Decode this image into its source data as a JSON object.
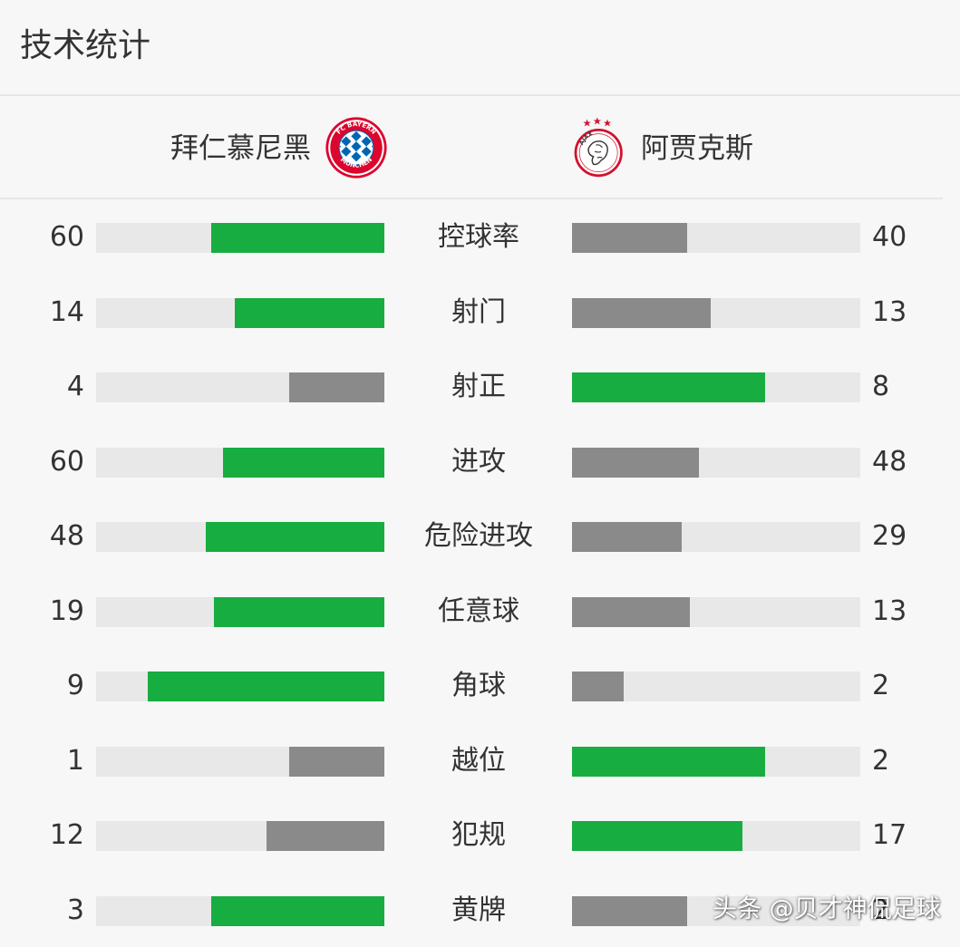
{
  "page": {
    "title": "技术统计"
  },
  "teams": {
    "home": {
      "name": "拜仁慕尼黑",
      "logo_icon": "bayern-munich-logo",
      "logo_text": "FC BAYERN MÜNCHEN"
    },
    "away": {
      "name": "阿贾克斯",
      "logo_icon": "ajax-logo",
      "logo_text": "AJAX"
    }
  },
  "colors": {
    "leader": "#17ad40",
    "trailer": "#8a8a8a",
    "track": "#e8e8e8"
  },
  "stats": [
    {
      "label": "控球率",
      "home": "60",
      "away": "40",
      "home_fill": 0.6,
      "away_fill": 0.4,
      "leader": "home"
    },
    {
      "label": "射门",
      "home": "14",
      "away": "13",
      "home_fill": 0.52,
      "away_fill": 0.48,
      "leader": "home"
    },
    {
      "label": "射正",
      "home": "4",
      "away": "8",
      "home_fill": 0.33,
      "away_fill": 0.67,
      "leader": "away"
    },
    {
      "label": "进攻",
      "home": "60",
      "away": "48",
      "home_fill": 0.56,
      "away_fill": 0.44,
      "leader": "home"
    },
    {
      "label": "危险进攻",
      "home": "48",
      "away": "29",
      "home_fill": 0.62,
      "away_fill": 0.38,
      "leader": "home"
    },
    {
      "label": "任意球",
      "home": "19",
      "away": "13",
      "home_fill": 0.59,
      "away_fill": 0.41,
      "leader": "home"
    },
    {
      "label": "角球",
      "home": "9",
      "away": "2",
      "home_fill": 0.82,
      "away_fill": 0.18,
      "leader": "home"
    },
    {
      "label": "越位",
      "home": "1",
      "away": "2",
      "home_fill": 0.33,
      "away_fill": 0.67,
      "leader": "away"
    },
    {
      "label": "犯规",
      "home": "12",
      "away": "17",
      "home_fill": 0.41,
      "away_fill": 0.59,
      "leader": "away"
    },
    {
      "label": "黄牌",
      "home": "3",
      "away": "2",
      "home_fill": 0.6,
      "away_fill": 0.4,
      "leader": "home"
    }
  ],
  "watermark": "头条 @贝才神侃足球"
}
